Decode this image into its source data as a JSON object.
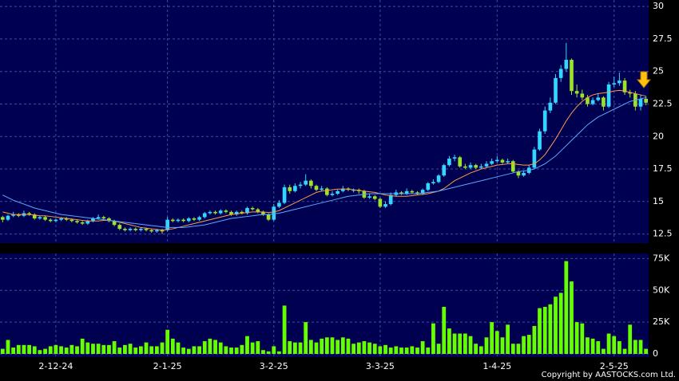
{
  "chart_data": [
    {
      "type": "candlestick",
      "up_color": "#33d6ff",
      "down_color": "#9be22a",
      "ylim": [
        11.8,
        30.5
      ],
      "yticks": [
        12.5,
        15,
        17.5,
        20,
        22.5,
        25,
        27.5,
        30
      ],
      "grid": true,
      "ohlc": [
        [
          13.8,
          13.9,
          13.4,
          13.6
        ],
        [
          13.6,
          14.0,
          13.5,
          13.9
        ],
        [
          13.9,
          14.2,
          13.8,
          14.0
        ],
        [
          14.0,
          14.1,
          13.8,
          13.9
        ],
        [
          13.9,
          14.3,
          13.8,
          14.1
        ],
        [
          14.1,
          14.2,
          13.9,
          14.0
        ],
        [
          14.0,
          14.1,
          13.6,
          13.7
        ],
        [
          13.7,
          13.9,
          13.6,
          13.8
        ],
        [
          13.8,
          13.9,
          13.5,
          13.6
        ],
        [
          13.6,
          13.7,
          13.4,
          13.5
        ],
        [
          13.5,
          13.7,
          13.4,
          13.6
        ],
        [
          13.6,
          13.8,
          13.5,
          13.7
        ],
        [
          13.7,
          13.8,
          13.5,
          13.6
        ],
        [
          13.6,
          13.7,
          13.4,
          13.5
        ],
        [
          13.5,
          13.6,
          13.3,
          13.4
        ],
        [
          13.4,
          13.5,
          13.2,
          13.3
        ],
        [
          13.3,
          13.6,
          13.2,
          13.5
        ],
        [
          13.5,
          13.8,
          13.4,
          13.7
        ],
        [
          13.7,
          14.0,
          13.6,
          13.8
        ],
        [
          13.8,
          13.9,
          13.6,
          13.7
        ],
        [
          13.7,
          13.8,
          13.4,
          13.5
        ],
        [
          13.5,
          13.6,
          13.1,
          13.2
        ],
        [
          13.2,
          13.3,
          12.8,
          12.9
        ],
        [
          12.9,
          13.0,
          12.7,
          12.8
        ],
        [
          12.8,
          13.0,
          12.7,
          12.9
        ],
        [
          12.9,
          13.0,
          12.7,
          12.8
        ],
        [
          12.8,
          13.0,
          12.7,
          12.9
        ],
        [
          12.9,
          13.0,
          12.7,
          12.8
        ],
        [
          12.8,
          12.9,
          12.6,
          12.7
        ],
        [
          12.7,
          12.9,
          12.6,
          12.8
        ],
        [
          12.8,
          12.9,
          12.5,
          12.7
        ],
        [
          12.8,
          13.8,
          12.7,
          13.6
        ],
        [
          13.6,
          13.7,
          13.4,
          13.5
        ],
        [
          13.5,
          13.7,
          13.4,
          13.6
        ],
        [
          13.6,
          13.7,
          13.4,
          13.5
        ],
        [
          13.5,
          13.8,
          13.4,
          13.7
        ],
        [
          13.7,
          13.8,
          13.5,
          13.6
        ],
        [
          13.6,
          13.9,
          13.5,
          13.8
        ],
        [
          13.8,
          14.2,
          13.7,
          14.1
        ],
        [
          14.1,
          14.3,
          14.0,
          14.2
        ],
        [
          14.2,
          14.3,
          14.0,
          14.1
        ],
        [
          14.1,
          14.4,
          14.0,
          14.3
        ],
        [
          14.3,
          14.4,
          14.1,
          14.2
        ],
        [
          14.2,
          14.3,
          13.9,
          14.0
        ],
        [
          14.0,
          14.3,
          13.9,
          14.2
        ],
        [
          14.2,
          14.3,
          14.0,
          14.1
        ],
        [
          14.1,
          14.6,
          14.0,
          14.5
        ],
        [
          14.5,
          14.6,
          14.3,
          14.4
        ],
        [
          14.4,
          14.5,
          14.1,
          14.2
        ],
        [
          14.2,
          14.3,
          13.9,
          14.0
        ],
        [
          14.0,
          14.1,
          13.5,
          13.6
        ],
        [
          13.6,
          14.8,
          13.5,
          14.6
        ],
        [
          14.6,
          15.1,
          14.5,
          14.9
        ],
        [
          14.9,
          16.3,
          14.8,
          16.1
        ],
        [
          16.1,
          16.3,
          15.6,
          15.8
        ],
        [
          15.8,
          16.4,
          15.7,
          16.2
        ],
        [
          16.2,
          16.5,
          16.0,
          16.3
        ],
        [
          16.3,
          17.1,
          16.2,
          16.6
        ],
        [
          16.6,
          16.7,
          16.0,
          16.2
        ],
        [
          16.2,
          16.3,
          15.8,
          15.9
        ],
        [
          15.9,
          16.2,
          15.8,
          16.0
        ],
        [
          16.0,
          16.1,
          15.4,
          15.5
        ],
        [
          15.5,
          15.8,
          15.4,
          15.6
        ],
        [
          15.6,
          15.9,
          15.5,
          15.8
        ],
        [
          15.8,
          16.2,
          15.7,
          16.0
        ],
        [
          16.0,
          16.1,
          15.8,
          15.9
        ],
        [
          15.9,
          16.0,
          15.7,
          15.9
        ],
        [
          15.9,
          16.0,
          15.6,
          15.8
        ],
        [
          15.8,
          15.9,
          15.2,
          15.3
        ],
        [
          15.3,
          15.6,
          15.2,
          15.4
        ],
        [
          15.4,
          15.5,
          15.1,
          15.2
        ],
        [
          15.2,
          15.3,
          14.5,
          14.6
        ],
        [
          14.6,
          15.0,
          14.5,
          14.8
        ],
        [
          14.8,
          15.7,
          14.7,
          15.5
        ],
        [
          15.5,
          15.9,
          15.4,
          15.7
        ],
        [
          15.7,
          15.8,
          15.5,
          15.6
        ],
        [
          15.6,
          16.0,
          15.5,
          15.8
        ],
        [
          15.8,
          15.9,
          15.6,
          15.7
        ],
        [
          15.7,
          15.8,
          15.5,
          15.6
        ],
        [
          15.6,
          16.0,
          15.5,
          15.9
        ],
        [
          15.9,
          16.5,
          15.8,
          16.4
        ],
        [
          16.4,
          16.7,
          16.3,
          16.5
        ],
        [
          16.5,
          17.1,
          16.4,
          17.0
        ],
        [
          17.0,
          17.9,
          16.9,
          17.8
        ],
        [
          17.8,
          18.5,
          17.7,
          18.3
        ],
        [
          18.3,
          18.6,
          18.1,
          18.4
        ],
        [
          18.4,
          18.5,
          17.6,
          17.7
        ],
        [
          17.7,
          17.9,
          17.5,
          17.6
        ],
        [
          17.6,
          18.0,
          17.5,
          17.8
        ],
        [
          17.8,
          17.9,
          17.5,
          17.6
        ],
        [
          17.6,
          17.9,
          17.5,
          17.7
        ],
        [
          17.7,
          18.1,
          17.6,
          17.9
        ],
        [
          17.9,
          18.3,
          17.8,
          18.1
        ],
        [
          18.1,
          18.5,
          18.0,
          18.2
        ],
        [
          18.2,
          18.3,
          17.9,
          18.0
        ],
        [
          18.0,
          18.3,
          17.9,
          18.1
        ],
        [
          18.1,
          18.2,
          17.2,
          17.3
        ],
        [
          17.3,
          17.4,
          16.8,
          17.0
        ],
        [
          17.0,
          17.4,
          16.9,
          17.2
        ],
        [
          17.2,
          17.8,
          17.1,
          17.6
        ],
        [
          17.6,
          19.2,
          17.5,
          19.0
        ],
        [
          19.0,
          20.6,
          18.9,
          20.4
        ],
        [
          20.4,
          22.3,
          20.2,
          22.0
        ],
        [
          22.0,
          23.0,
          21.8,
          22.6
        ],
        [
          22.6,
          24.8,
          22.5,
          24.5
        ],
        [
          24.5,
          25.5,
          24.2,
          25.2
        ],
        [
          25.2,
          27.2,
          25.0,
          25.9
        ],
        [
          25.9,
          26.0,
          23.2,
          23.5
        ],
        [
          23.5,
          24.0,
          23.0,
          23.3
        ],
        [
          23.3,
          23.6,
          22.8,
          23.0
        ],
        [
          23.0,
          23.2,
          22.3,
          22.5
        ],
        [
          22.5,
          23.0,
          22.4,
          22.8
        ],
        [
          22.8,
          23.3,
          22.7,
          23.0
        ],
        [
          23.0,
          23.1,
          22.0,
          22.3
        ],
        [
          22.3,
          24.2,
          22.2,
          24.0
        ],
        [
          24.0,
          24.6,
          23.8,
          24.1
        ],
        [
          24.1,
          24.9,
          23.9,
          24.3
        ],
        [
          24.3,
          24.5,
          23.2,
          23.4
        ],
        [
          23.4,
          23.6,
          23.0,
          23.3
        ],
        [
          23.3,
          23.5,
          22.0,
          22.3
        ],
        [
          22.3,
          23.2,
          22.0,
          22.9
        ],
        [
          22.9,
          23.1,
          22.4,
          22.6
        ]
      ],
      "series": [
        {
          "color": "#ff9a4a",
          "values": [
            14.2,
            14.1,
            14.0,
            14.0,
            14.0,
            14.0,
            13.95,
            13.9,
            13.9,
            13.85,
            13.8,
            13.75,
            13.7,
            13.65,
            13.6,
            13.55,
            13.5,
            13.5,
            13.5,
            13.55,
            13.55,
            13.5,
            13.4,
            13.3,
            13.2,
            13.1,
            13.0,
            12.95,
            12.9,
            12.85,
            12.8,
            12.85,
            12.9,
            13.0,
            13.1,
            13.2,
            13.3,
            13.4,
            13.5,
            13.6,
            13.7,
            13.8,
            13.9,
            14.0,
            14.05,
            14.1,
            14.15,
            14.2,
            14.2,
            14.2,
            14.15,
            14.2,
            14.3,
            14.5,
            14.7,
            14.9,
            15.1,
            15.3,
            15.5,
            15.7,
            15.8,
            15.85,
            15.9,
            15.95,
            15.95,
            15.95,
            15.9,
            15.85,
            15.8,
            15.75,
            15.7,
            15.6,
            15.5,
            15.45,
            15.4,
            15.4,
            15.4,
            15.45,
            15.5,
            15.55,
            15.6,
            15.7,
            15.8,
            16.0,
            16.3,
            16.6,
            16.8,
            17.0,
            17.2,
            17.35,
            17.5,
            17.6,
            17.7,
            17.8,
            17.85,
            17.9,
            17.9,
            17.85,
            17.8,
            17.8,
            17.9,
            18.2,
            18.6,
            19.2,
            19.8,
            20.5,
            21.2,
            21.8,
            22.3,
            22.7,
            23.0,
            23.2,
            23.3,
            23.35,
            23.4,
            23.5,
            23.55,
            23.5,
            23.4,
            23.3,
            23.2,
            23.1
          ]
        },
        {
          "color": "#5aa8ff",
          "values": [
            15.5,
            15.3,
            15.1,
            14.95,
            14.8,
            14.65,
            14.5,
            14.4,
            14.3,
            14.2,
            14.1,
            14.0,
            13.95,
            13.9,
            13.85,
            13.8,
            13.75,
            13.7,
            13.65,
            13.6,
            13.55,
            13.5,
            13.45,
            13.4,
            13.35,
            13.3,
            13.25,
            13.2,
            13.15,
            13.1,
            13.05,
            13.0,
            13.0,
            13.0,
            13.0,
            13.05,
            13.1,
            13.15,
            13.2,
            13.3,
            13.4,
            13.5,
            13.6,
            13.7,
            13.75,
            13.8,
            13.85,
            13.9,
            13.95,
            14.0,
            14.0,
            14.05,
            14.1,
            14.2,
            14.3,
            14.4,
            14.5,
            14.6,
            14.7,
            14.8,
            14.9,
            15.0,
            15.1,
            15.2,
            15.3,
            15.4,
            15.45,
            15.5,
            15.55,
            15.6,
            15.6,
            15.6,
            15.6,
            15.6,
            15.6,
            15.6,
            15.6,
            15.6,
            15.6,
            15.65,
            15.7,
            15.75,
            15.8,
            15.9,
            16.0,
            16.1,
            16.2,
            16.3,
            16.4,
            16.5,
            16.6,
            16.7,
            16.8,
            16.9,
            17.0,
            17.1,
            17.2,
            17.3,
            17.35,
            17.4,
            17.5,
            17.7,
            17.9,
            18.2,
            18.5,
            18.9,
            19.3,
            19.7,
            20.1,
            20.5,
            20.9,
            21.2,
            21.5,
            21.7,
            21.9,
            22.1,
            22.3,
            22.5,
            22.7,
            22.8,
            22.9,
            23.0
          ]
        }
      ]
    },
    {
      "type": "bar",
      "color": "#66ff00",
      "ylim": [
        -2500,
        79000
      ],
      "yticks": [
        0,
        {
          "value": 25000,
          "label": "25K"
        },
        {
          "value": 50000,
          "label": "50K"
        },
        {
          "value": 75000,
          "label": "75K"
        }
      ],
      "grid": true,
      "categories": [
        null,
        null,
        null,
        null,
        null,
        null,
        null,
        null,
        null,
        null,
        "2-12-24",
        null,
        null,
        null,
        null,
        null,
        null,
        null,
        null,
        null,
        null,
        null,
        null,
        null,
        null,
        null,
        null,
        null,
        null,
        null,
        null,
        "2-1-25",
        null,
        null,
        null,
        null,
        null,
        null,
        null,
        null,
        null,
        null,
        null,
        null,
        null,
        null,
        null,
        null,
        null,
        null,
        null,
        "3-2-25",
        null,
        null,
        null,
        null,
        null,
        null,
        null,
        null,
        null,
        null,
        null,
        null,
        null,
        null,
        null,
        null,
        null,
        null,
        null,
        "3-3-25",
        null,
        null,
        null,
        null,
        null,
        null,
        null,
        null,
        null,
        null,
        null,
        null,
        null,
        null,
        null,
        null,
        null,
        null,
        null,
        null,
        null,
        "1-4-25",
        null,
        null,
        null,
        null,
        null,
        null,
        null,
        null,
        null,
        null,
        null,
        null,
        null,
        null,
        null,
        null,
        null,
        null,
        null,
        null,
        null,
        "2-5-25",
        null,
        null,
        null,
        null,
        null,
        null
      ],
      "values": [
        4000,
        11000,
        5000,
        7000,
        7000,
        7000,
        6000,
        3000,
        4000,
        6000,
        7000,
        6000,
        5000,
        7000,
        6000,
        12000,
        9000,
        8000,
        8000,
        7000,
        7000,
        10000,
        5000,
        7000,
        8000,
        5000,
        6000,
        9000,
        6000,
        6000,
        9000,
        19000,
        12000,
        9000,
        5000,
        4000,
        6000,
        6000,
        10000,
        12000,
        11000,
        9000,
        6000,
        5000,
        5000,
        7000,
        14000,
        9000,
        10000,
        3000,
        2000,
        6000,
        2000,
        38000,
        10000,
        9000,
        9000,
        25000,
        11000,
        9000,
        12000,
        13000,
        13000,
        11000,
        13000,
        12000,
        8000,
        9000,
        10000,
        9000,
        8000,
        6000,
        7000,
        5000,
        6000,
        5000,
        5000,
        6000,
        5000,
        10000,
        5000,
        24000,
        8000,
        37000,
        20000,
        16000,
        16000,
        16000,
        14000,
        8000,
        6000,
        13000,
        25000,
        18000,
        13000,
        23000,
        8000,
        8000,
        14000,
        15000,
        22000,
        36000,
        37000,
        39000,
        45000,
        48000,
        73000,
        57000,
        25000,
        24000,
        13000,
        12000,
        10000,
        4000,
        16000,
        14000,
        10000,
        4000,
        23000,
        11000,
        11000,
        4000
      ]
    }
  ],
  "copyright": "Copyright by AASTOCKS.com Ltd."
}
